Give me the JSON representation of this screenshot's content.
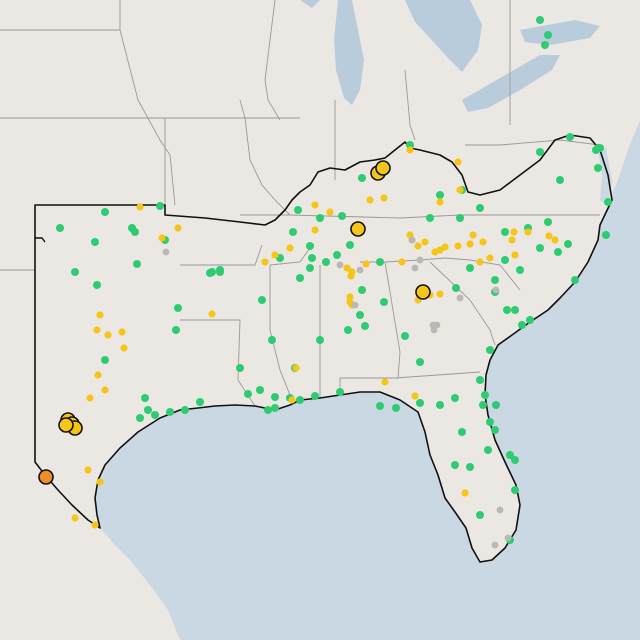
{
  "map": {
    "colors": {
      "land": "#ebe7e3",
      "foreign_land": "#e9e4df",
      "water": "#c9d8e3",
      "lake": "#b9ccdb",
      "border": "#9a9a9a",
      "region_outline": "#111111",
      "good": "#2ecc71",
      "moderate": "#f5c518",
      "usg": "#f28c28",
      "no_data": "#b8b8b8"
    },
    "marker_categories": [
      "good",
      "moderate",
      "unhealthy-for-sensitive-groups",
      "no-data"
    ]
  }
}
